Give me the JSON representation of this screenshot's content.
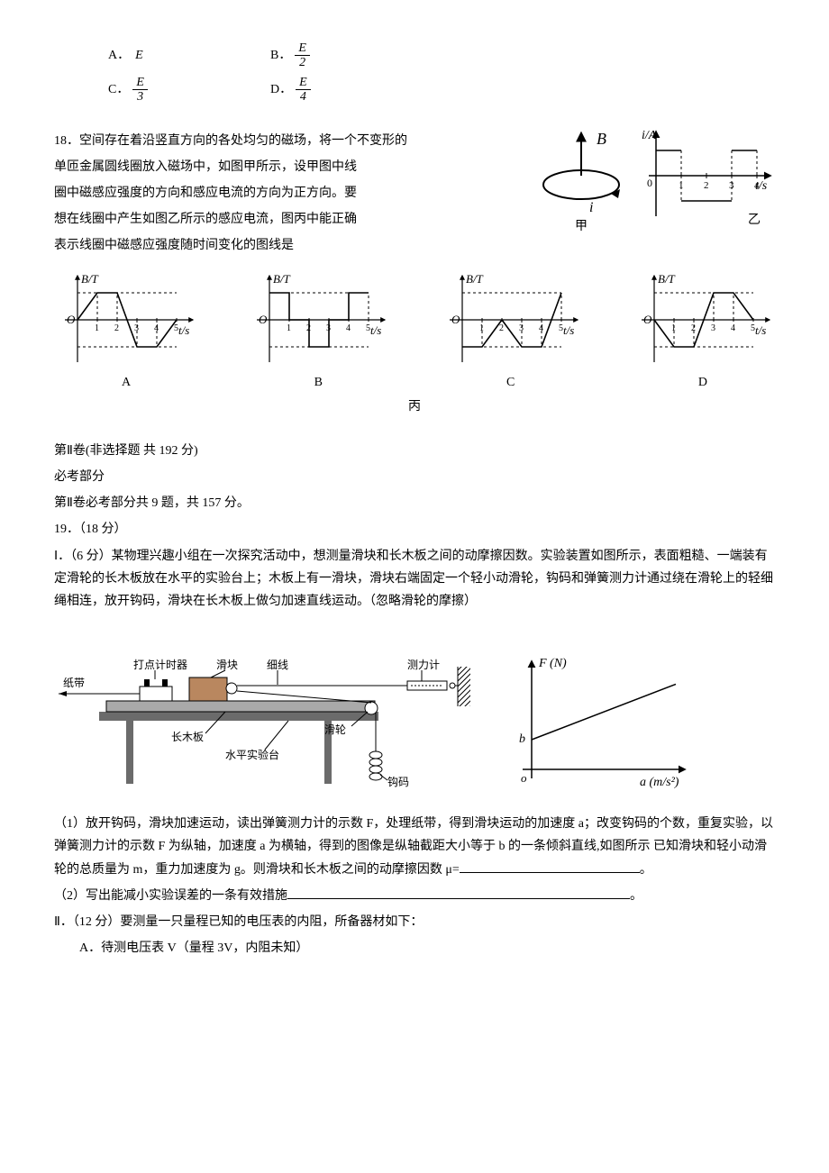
{
  "q17_options": {
    "A": {
      "label": "A．",
      "text": "E"
    },
    "B": {
      "label": "B．",
      "frac": {
        "num": "E",
        "den": "2"
      }
    },
    "C": {
      "label": "C．",
      "frac": {
        "num": "E",
        "den": "3"
      }
    },
    "D": {
      "label": "D．",
      "frac": {
        "num": "E",
        "den": "4"
      }
    }
  },
  "q18": {
    "number": "18．",
    "stem_lines": [
      "空间存在着沿竖直方向的各处均匀的磁场，将一个不变形的",
      "单匝金属圆线圈放入磁场中，如图甲所示，设甲图中线",
      "圈中磁感应强度的方向和感应电流的方向为正方向。要",
      "想在线圈中产生如图乙所示的感应电流，图丙中能正确",
      "表示线圈中磁感应强度随时间变化的图线是"
    ],
    "fig_labels": {
      "jia": "甲",
      "yi": "乙",
      "bing": "丙"
    },
    "current_graph": {
      "y_label": "i/A",
      "x_label": "t/s",
      "ticks": [
        "1",
        "2",
        "3",
        "4"
      ],
      "ylim": [
        -1.2,
        1.2
      ],
      "axis_color": "#000000",
      "dash_color": "#000000",
      "segments": [
        {
          "t0": 0,
          "t1": 1,
          "i": 1
        },
        {
          "t0": 1,
          "t1": 3,
          "i": -1
        },
        {
          "t0": 3,
          "t1": 4,
          "i": 1
        }
      ]
    },
    "coil": {
      "B_label": "B",
      "i_label": "i",
      "arrow_color": "#000000"
    },
    "panels": {
      "y_label": "B/T",
      "x_label": "t/s",
      "ticks": [
        "1",
        "2",
        "3",
        "4",
        "5"
      ],
      "origin_label": "O",
      "axis_color": "#000000",
      "list": [
        {
          "label": "A",
          "points": [
            [
              0,
              0
            ],
            [
              1,
              1
            ],
            [
              2,
              1
            ],
            [
              3,
              -1
            ],
            [
              4,
              -1
            ],
            [
              5,
              0
            ]
          ]
        },
        {
          "label": "B",
          "points": [
            [
              0,
              1
            ],
            [
              1,
              1
            ],
            [
              1,
              0
            ],
            [
              2,
              0
            ],
            [
              2,
              -1
            ],
            [
              3,
              -1
            ],
            [
              3,
              0
            ],
            [
              4,
              0
            ],
            [
              4,
              1
            ],
            [
              5,
              1
            ]
          ]
        },
        {
          "label": "C",
          "points": [
            [
              0,
              -1
            ],
            [
              1,
              -1
            ],
            [
              2,
              0
            ],
            [
              3,
              -1
            ],
            [
              4,
              -1
            ],
            [
              5,
              1
            ]
          ]
        },
        {
          "label": "D",
          "points": [
            [
              0,
              0
            ],
            [
              1,
              -1
            ],
            [
              2,
              -1
            ],
            [
              3,
              1
            ],
            [
              4,
              1
            ],
            [
              5,
              0
            ]
          ]
        }
      ]
    }
  },
  "section": {
    "part2_heading": "第Ⅱ卷(非选择题  共 192 分)",
    "required_heading": "必考部分",
    "required_note": "第Ⅱ卷必考部分共 9 题，共 157 分。"
  },
  "q19": {
    "number": "19．",
    "score": "（18 分）",
    "I_heading": "Ⅰ．（6 分）",
    "I_text": "某物理兴趣小组在一次探究活动中，想测量滑块和长木板之间的动摩擦因数。实验装置如图所示，表面粗糙、一端装有定滑轮的长木板放在水平的实验台上；木板上有一滑块，滑块右端固定一个轻小动滑轮，钩码和弹簧测力计通过绕在滑轮上的轻细绳相连，放开钩码，滑块在长木板上做匀加速直线运动。（忽略滑轮的摩擦）",
    "apparatus_labels": {
      "tape": "纸带",
      "timer": "打点计时器",
      "slider": "滑块",
      "string": "细线",
      "dynamometer": "测力计",
      "pulley": "滑轮",
      "board": "长木板",
      "table": "水平实验台",
      "weights": "钩码"
    },
    "apparatus_colors": {
      "slider_fill": "#b9875f",
      "board_fill": "#a9a9a9",
      "table_fill": "#6b6b6b",
      "line": "#000000"
    },
    "F_a_graph": {
      "y_label": "F  (N)",
      "x_label": "a (m/s²)",
      "intercept_label": "b",
      "origin_label": "o",
      "axis_color": "#000000",
      "line_color": "#000000",
      "intercept": 0.3,
      "slope": 0.35
    },
    "sub1_prefix": "（1）",
    "sub1_text": "放开钩码，滑块加速运动，读出弹簧测力计的示数 F，处理纸带，得到滑块运动的加速度 a；改变钩码的个数，重复实验，以弹簧测力计的示数 F 为纵轴，加速度 a 为横轴，得到的图像是纵轴截距大小等于 b 的一条倾斜直线,如图所示  已知滑块和轻小动滑轮的总质量为 m，重力加速度为 g。则滑块和长木板之间的动摩擦因数 μ=",
    "sub1_period": "。",
    "sub2_prefix": "（2）",
    "sub2_text": "写出能减小实验误差的一条有效措施",
    "sub2_period": "。",
    "II_heading": "Ⅱ．（12 分）",
    "II_text": "要测量一只量程已知的电压表的内阻，所备器材如下：",
    "II_itemA_label": "A．",
    "II_itemA_text": "待测电压表 V（量程 3V，内阻未知）"
  }
}
